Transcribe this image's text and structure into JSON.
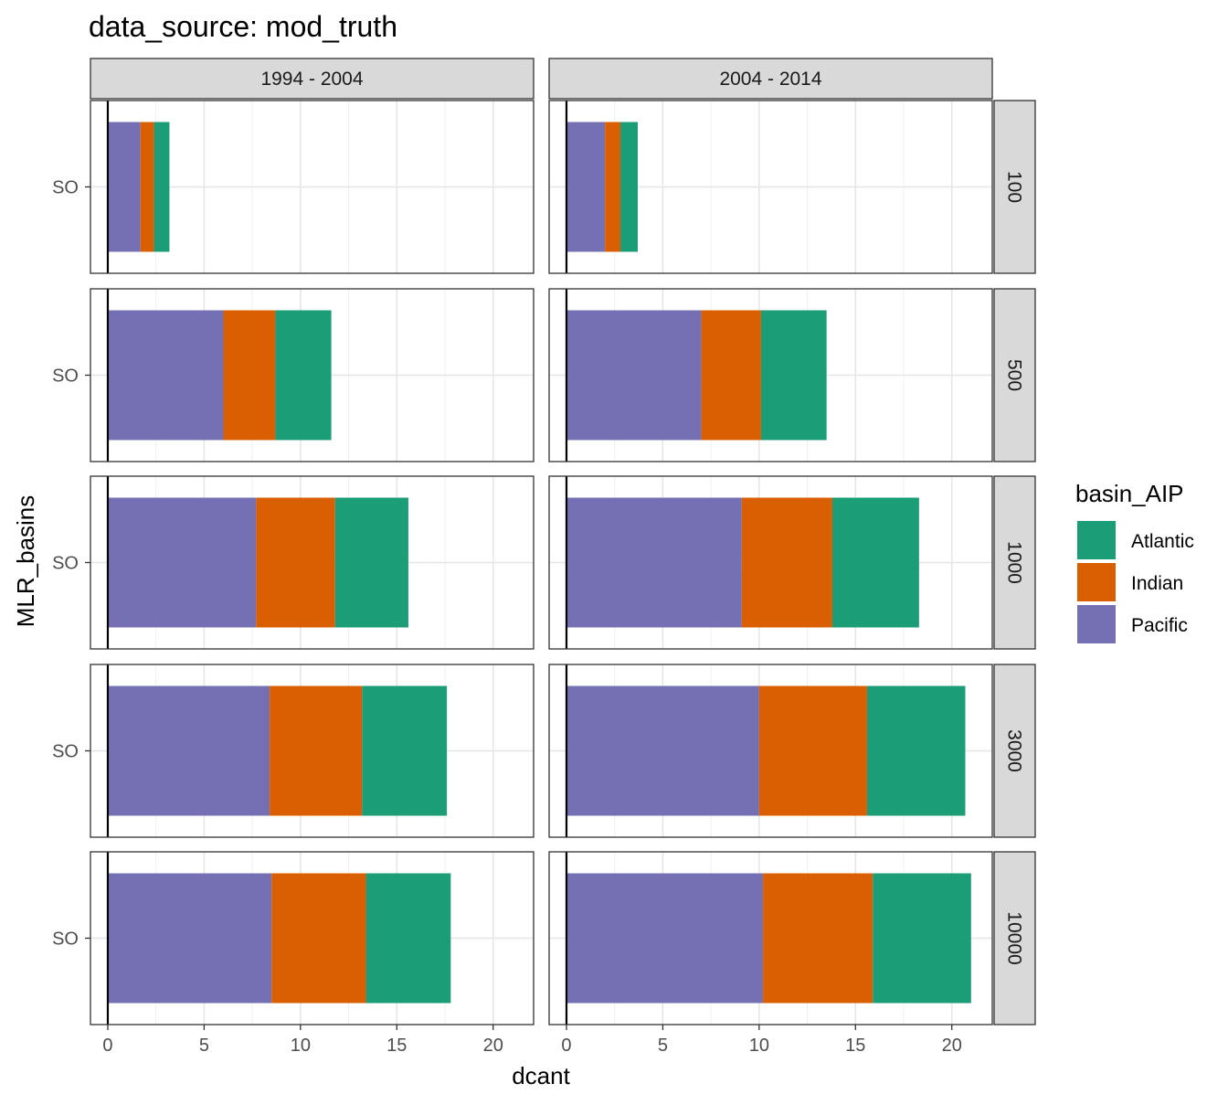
{
  "chart_data": {
    "type": "bar",
    "orientation": "horizontal",
    "stacked": true,
    "title": "data_source: mod_truth",
    "xlabel": "dcant",
    "ylabel": "MLR_basins",
    "xlim": [
      -0.9,
      22.1
    ],
    "x_ticks": [
      0,
      5,
      10,
      15,
      20
    ],
    "x_tick_labels": [
      "0",
      "5",
      "10",
      "15",
      "20"
    ],
    "category": "SO",
    "grid": true,
    "legend": {
      "title": "basin_AIP",
      "position": "right",
      "entries": [
        "Atlantic",
        "Indian",
        "Pacific"
      ]
    },
    "colors": {
      "Atlantic": "#1b9e77",
      "Indian": "#d95f02",
      "Pacific": "#7570b3"
    },
    "stack_order": [
      "Pacific",
      "Indian",
      "Atlantic"
    ],
    "column_facets": [
      "1994 - 2004",
      "2004 - 2014"
    ],
    "row_facets": [
      "100",
      "500",
      "1000",
      "3000",
      "10000"
    ],
    "panels": [
      {
        "column": "1994 - 2004",
        "row": "100",
        "category": "SO",
        "values": {
          "Pacific": 1.7,
          "Indian": 0.7,
          "Atlantic": 0.8
        }
      },
      {
        "column": "2004 - 2014",
        "row": "100",
        "category": "SO",
        "values": {
          "Pacific": 2.0,
          "Indian": 0.8,
          "Atlantic": 0.9
        }
      },
      {
        "column": "1994 - 2004",
        "row": "500",
        "category": "SO",
        "values": {
          "Pacific": 6.0,
          "Indian": 2.7,
          "Atlantic": 2.9
        }
      },
      {
        "column": "2004 - 2014",
        "row": "500",
        "category": "SO",
        "values": {
          "Pacific": 7.0,
          "Indian": 3.1,
          "Atlantic": 3.4
        }
      },
      {
        "column": "1994 - 2004",
        "row": "1000",
        "category": "SO",
        "values": {
          "Pacific": 7.7,
          "Indian": 4.1,
          "Atlantic": 3.8
        }
      },
      {
        "column": "2004 - 2014",
        "row": "1000",
        "category": "SO",
        "values": {
          "Pacific": 9.1,
          "Indian": 4.7,
          "Atlantic": 4.5
        }
      },
      {
        "column": "1994 - 2004",
        "row": "3000",
        "category": "SO",
        "values": {
          "Pacific": 8.4,
          "Indian": 4.8,
          "Atlantic": 4.4
        }
      },
      {
        "column": "2004 - 2014",
        "row": "3000",
        "category": "SO",
        "values": {
          "Pacific": 10.0,
          "Indian": 5.6,
          "Atlantic": 5.1
        }
      },
      {
        "column": "1994 - 2004",
        "row": "10000",
        "category": "SO",
        "values": {
          "Pacific": 8.5,
          "Indian": 4.9,
          "Atlantic": 4.4
        }
      },
      {
        "column": "2004 - 2014",
        "row": "10000",
        "category": "SO",
        "values": {
          "Pacific": 10.2,
          "Indian": 5.7,
          "Atlantic": 5.1
        }
      }
    ]
  }
}
